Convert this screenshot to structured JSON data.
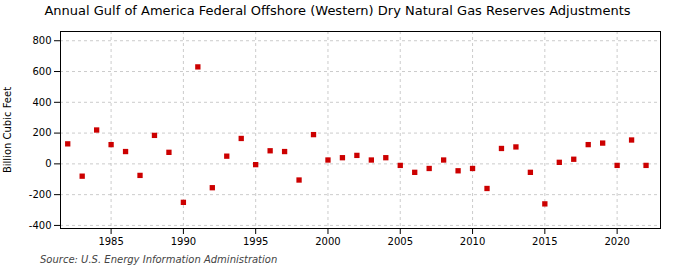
{
  "chart_data": {
    "type": "scatter",
    "title": "Annual Gulf of America Federal Offshore (Western) Dry Natural Gas Reserves Adjustments",
    "ylabel": "Billion Cubic Feet",
    "source": "Source: U.S. Energy Information Administration",
    "x": [
      1982,
      1983,
      1984,
      1985,
      1986,
      1987,
      1988,
      1989,
      1990,
      1991,
      1992,
      1993,
      1994,
      1995,
      1996,
      1997,
      1998,
      1999,
      2000,
      2001,
      2002,
      2003,
      2004,
      2005,
      2006,
      2007,
      2008,
      2009,
      2010,
      2011,
      2012,
      2013,
      2014,
      2015,
      2016,
      2017,
      2018,
      2019,
      2020,
      2021,
      2022
    ],
    "values": [
      130,
      -80,
      220,
      125,
      80,
      -75,
      185,
      75,
      -250,
      630,
      -155,
      50,
      165,
      -5,
      85,
      80,
      -105,
      190,
      25,
      40,
      55,
      25,
      40,
      -10,
      -55,
      -30,
      25,
      -45,
      -30,
      -160,
      100,
      110,
      -55,
      -260,
      10,
      30,
      125,
      135,
      -10,
      155,
      -10
    ],
    "color": "#cc0000",
    "marker": "square",
    "xlim": [
      1981.5,
      2023
    ],
    "xticks": [
      1985,
      1990,
      1995,
      2000,
      2005,
      2010,
      2015,
      2020
    ],
    "ylim": [
      -420,
      860
    ],
    "yticks": [
      -400,
      -200,
      0,
      200,
      400,
      600,
      800
    ],
    "grid": true
  }
}
